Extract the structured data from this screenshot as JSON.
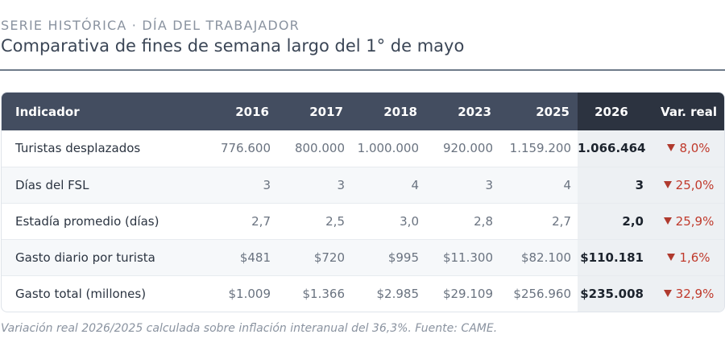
{
  "header": {
    "kicker": "SERIE HISTÓRICA · DÍA DEL TRABAJADOR",
    "title": "Comparativa de fines de semana largo del 1° de mayo"
  },
  "table": {
    "columns": [
      "Indicador",
      "2016",
      "2017",
      "2018",
      "2023",
      "2025",
      "2026",
      "Var. real"
    ],
    "rows": [
      {
        "indicator": "Turistas desplazados",
        "values": [
          "776.600",
          "800.000",
          "1.000.000",
          "920.000",
          "1.159.200"
        ],
        "current": "1.066.464",
        "variation": "8,0%",
        "direction": "down"
      },
      {
        "indicator": "Días del FSL",
        "values": [
          "3",
          "3",
          "4",
          "3",
          "4"
        ],
        "current": "3",
        "variation": "25,0%",
        "direction": "down"
      },
      {
        "indicator": "Estadía promedio (días)",
        "values": [
          "2,7",
          "2,5",
          "3,0",
          "2,8",
          "2,7"
        ],
        "current": "2,0",
        "variation": "25,9%",
        "direction": "down"
      },
      {
        "indicator": "Gasto diario por turista",
        "values": [
          "$481",
          "$720",
          "$995",
          "$11.300",
          "$82.100"
        ],
        "current": "$110.181",
        "variation": "1,6%",
        "direction": "down"
      },
      {
        "indicator": "Gasto total (millones)",
        "values": [
          "$1.009",
          "$1.366",
          "$2.985",
          "$29.109",
          "$256.960"
        ],
        "current": "$235.008",
        "variation": "32,9%",
        "direction": "down"
      }
    ]
  },
  "footnote": "Variación real 2026/2025 calculada sobre inflación interanual del 36,3%. Fuente: CAME.",
  "colors": {
    "header_bg": "#434d60",
    "highlight_header_bg": "#2c3340",
    "highlight_col_bg": "#edf0f3",
    "negative": "#c0392b"
  },
  "icons": {
    "variation": "triangle-down-icon"
  }
}
